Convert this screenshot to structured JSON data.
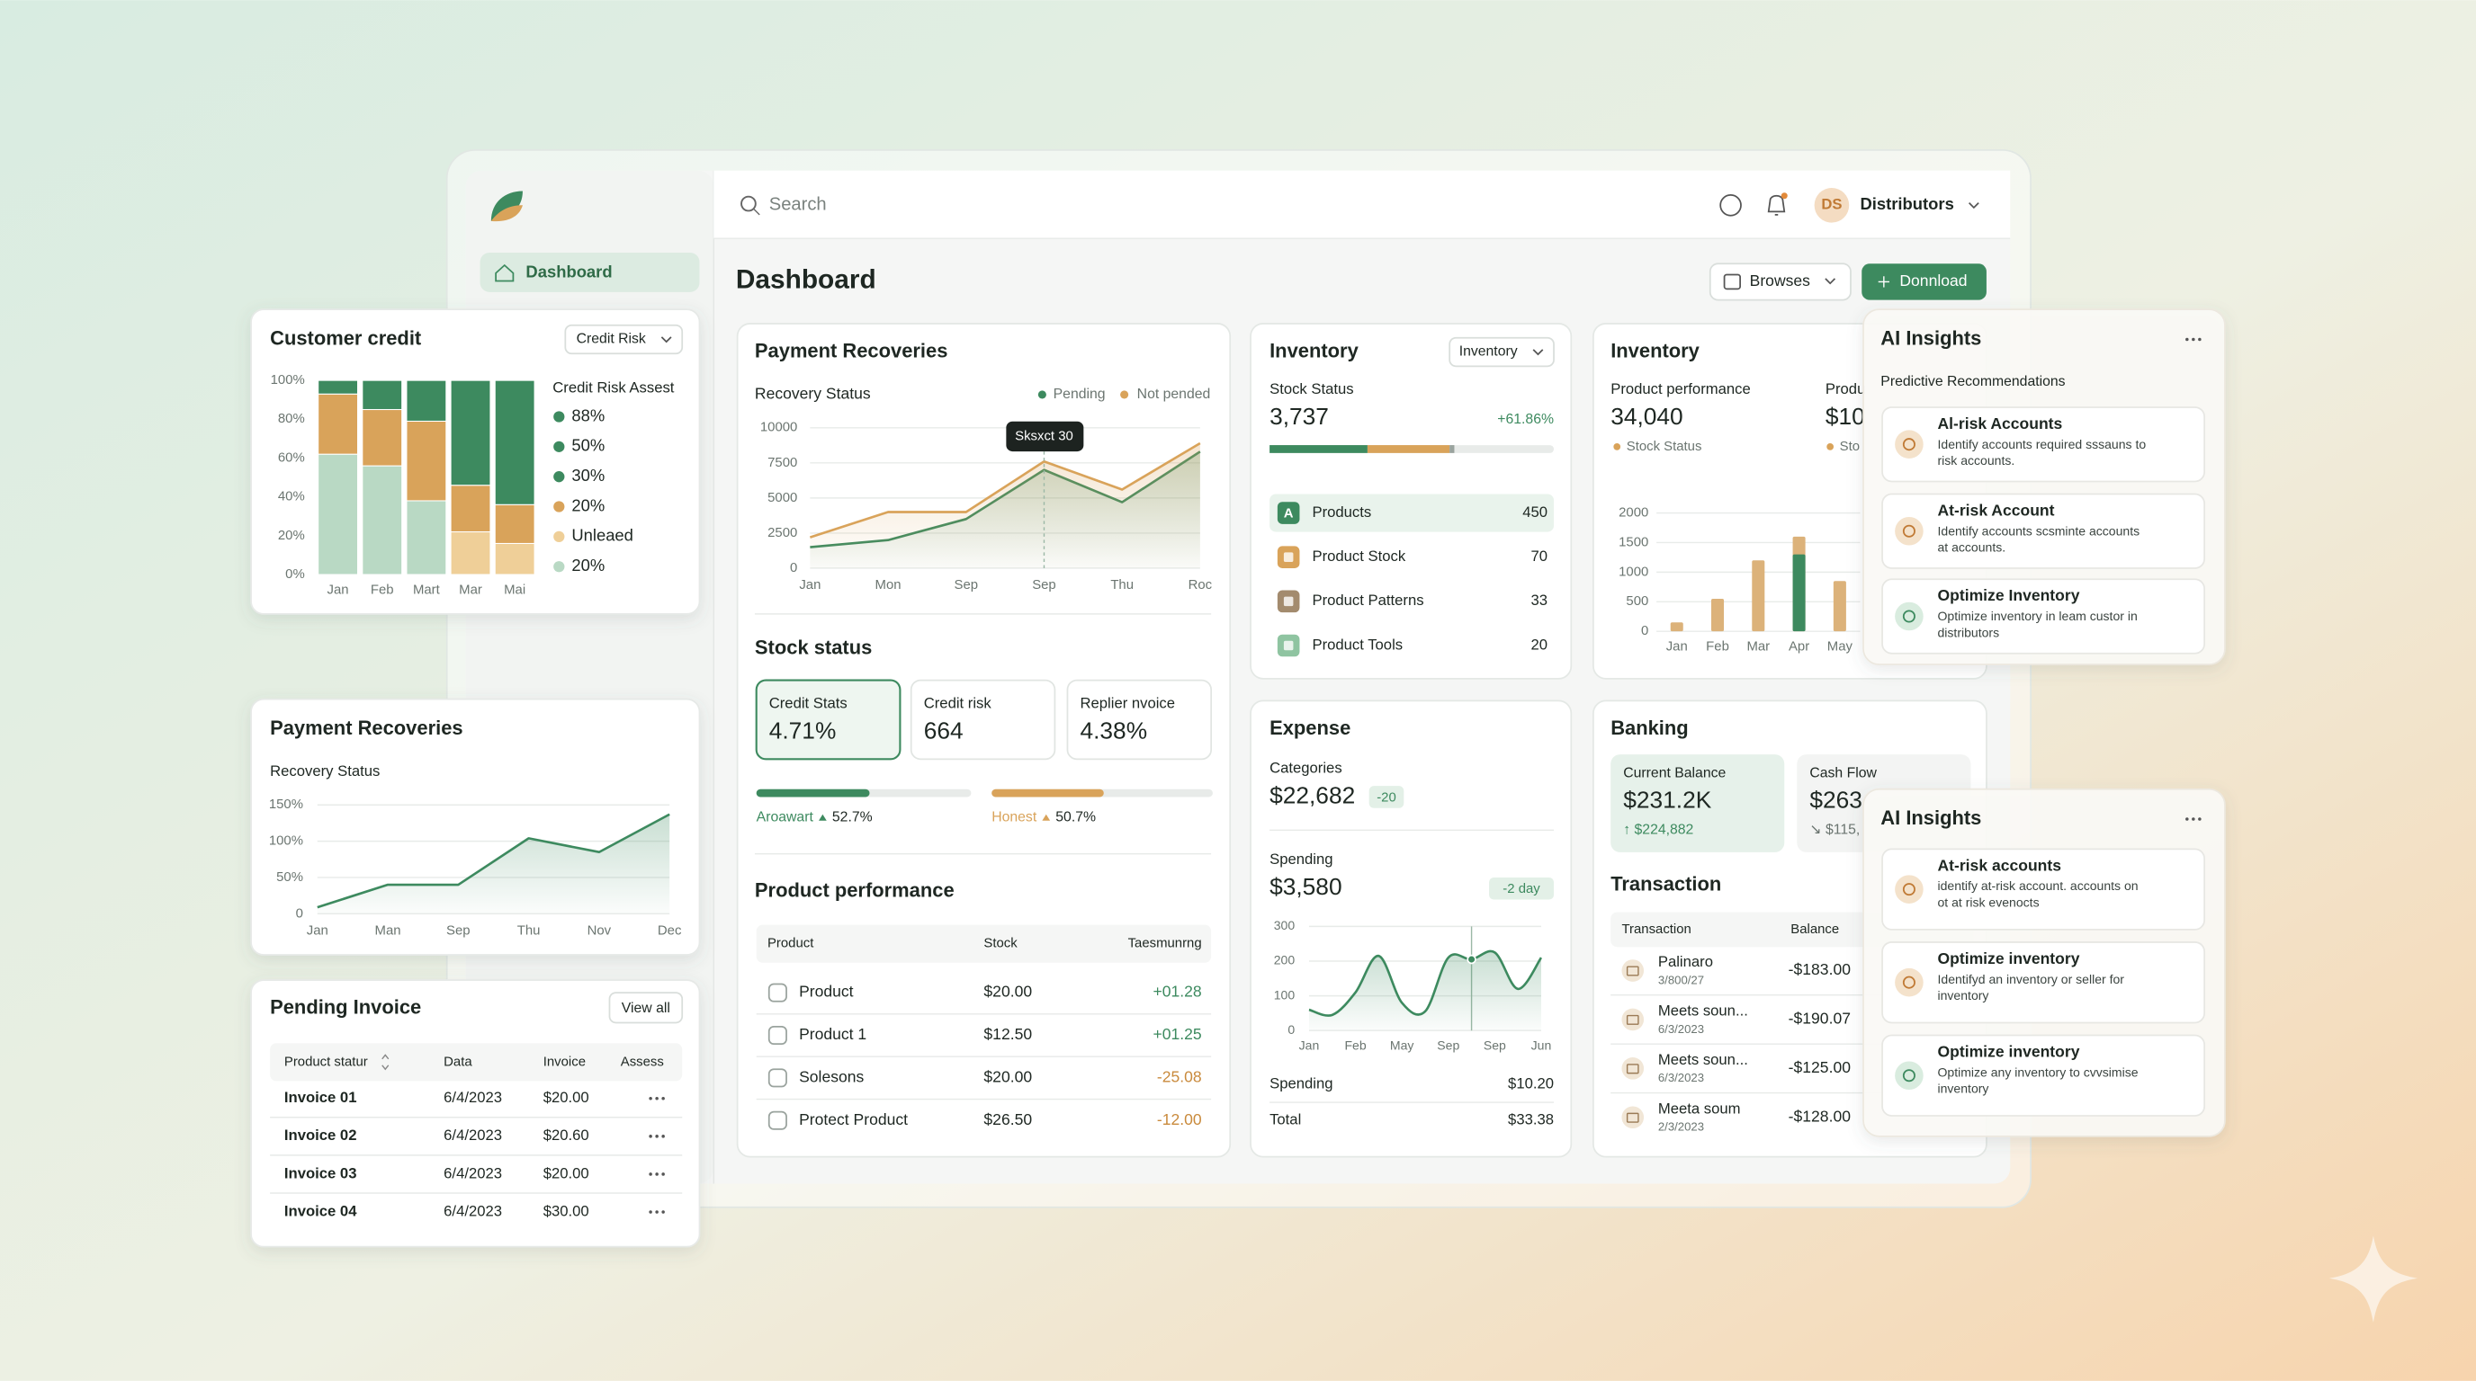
{
  "sidebar": {
    "nav": [
      "Dashboard"
    ]
  },
  "topbar": {
    "search": "Search",
    "user_initials": "DS",
    "user": "Distributors"
  },
  "header": {
    "title": "Dashboard",
    "buttons": [
      "Browses",
      "Donnload"
    ]
  },
  "payment_recoveries": {
    "title": "Payment Recoveries",
    "chart": {
      "type": "area",
      "title": "Recovery Status",
      "categories": [
        "Jan",
        "Mon",
        "Sep",
        "Sep",
        "Thu",
        "Roc"
      ],
      "series": [
        {
          "name": "Pending",
          "color": "#3d8a5f",
          "values": [
            1500,
            2000,
            3500,
            7000,
            4700,
            8300
          ]
        },
        {
          "name": "Not pended",
          "color": "#d9a35a",
          "values": [
            2200,
            4000,
            4000,
            7600,
            5600,
            8900
          ]
        }
      ],
      "ylim": [
        0,
        10000
      ],
      "yticks": [
        0,
        2500,
        5000,
        7500,
        10000
      ],
      "grid": true,
      "tooltip": "Sksxct 30"
    },
    "stock_title": "Stock status",
    "stats": [
      {
        "label": "Credit Stats",
        "value": "4.71%"
      },
      {
        "label": "Credit risk",
        "value": "664"
      },
      {
        "label": "Replier nvoice",
        "value": "4.38%"
      }
    ],
    "progress": {
      "xlim": [
        0,
        100
      ],
      "items": [
        {
          "label": "Aroawart",
          "value": 52.7,
          "value_label": "52.7%",
          "color": "#3d8a5f"
        },
        {
          "label": "Honest",
          "value": 50.7,
          "value_label": "50.7%",
          "color": "#d9a35a"
        }
      ]
    },
    "table": {
      "title": "Product performance",
      "columns": [
        "Product",
        "Stock",
        "Taesmunrng"
      ],
      "rows": [
        [
          "Product",
          "$20.00",
          "+01.28"
        ],
        [
          "Product 1",
          "$12.50",
          "+01.25"
        ],
        [
          "Solesons",
          "$20.00",
          "-25.08"
        ],
        [
          "Protect Product",
          "$26.50",
          "-12.00"
        ]
      ]
    }
  },
  "inventory_list": {
    "title": "Inventory",
    "dropdown": "Inventory",
    "label": "Stock Status",
    "value": "3,737",
    "change": "+61.86%",
    "items": [
      {
        "icon": "A",
        "name": "Products",
        "count": "450"
      },
      {
        "name": "Product Stock",
        "count": "70"
      },
      {
        "name": "Product Patterns",
        "count": "33"
      },
      {
        "name": "Product Tools",
        "count": "20"
      }
    ]
  },
  "inventory_chart": {
    "title": "Inventory",
    "subtitle": "Product performance",
    "value": "34,040",
    "legend": "Stock Status",
    "subtitle2": "Produ",
    "value2": "$10",
    "legend2": "Sto",
    "chart": {
      "type": "bar",
      "categories": [
        "Jan",
        "Feb",
        "Mar",
        "Apr",
        "May"
      ],
      "series": [
        {
          "color": "#dcb27a",
          "values": [
            150,
            550,
            1200,
            1600,
            850
          ]
        },
        {
          "color": "#3d8a5f",
          "values": [
            null,
            null,
            null,
            1300,
            null
          ]
        }
      ],
      "ylim": [
        0,
        2000
      ],
      "yticks": [
        0,
        500,
        1000,
        1500,
        2000
      ],
      "grid": true
    }
  },
  "expense": {
    "title": "Expense",
    "categories_label": "Categories",
    "amount": "$22,682",
    "badge": "-20",
    "spending_label": "Spending",
    "spending": "$3,580",
    "spending_badge": "-2 day",
    "chart": {
      "type": "area",
      "smooth": true,
      "categories": [
        "Jan",
        null,
        "Feb",
        null,
        "May",
        null,
        "Sep",
        null,
        "Sep",
        null,
        "Jun"
      ],
      "series": [
        {
          "color": "#3d8a5f",
          "values": [
            60,
            45,
            110,
            215,
            80,
            55,
            210,
            205,
            225,
            120,
            210
          ]
        }
      ],
      "ylim": [
        0,
        300
      ],
      "yticks": [
        0,
        100,
        200,
        300
      ],
      "grid": true,
      "highlight": 7
    },
    "summary": [
      [
        "Spending",
        "$10.20"
      ],
      [
        "Total",
        "$33.38"
      ]
    ]
  },
  "banking": {
    "title": "Banking",
    "cards": [
      {
        "label": "Current Balance",
        "value": "$231.2K",
        "change": "↑ $224,882"
      },
      {
        "label": "Cash Flow",
        "value": "$263",
        "change": "↘ $115,"
      }
    ],
    "transactions": {
      "title": "Transaction",
      "columns": [
        "Transaction",
        "Balance"
      ],
      "rows": [
        {
          "name": "Palinaro",
          "date": "3/800/27",
          "amount": "-$183.00"
        },
        {
          "name": "Meets soun...",
          "date": "6/3/2023",
          "amount": "-$190.07"
        },
        {
          "name": "Meets soun...",
          "date": "6/3/2023",
          "amount": "-$125.00"
        },
        {
          "name": "Meeta soum",
          "date": "2/3/2023",
          "amount": "-$128.00"
        }
      ]
    }
  },
  "customer_credit": {
    "title": "Customer credit",
    "dropdown": "Credit Risk",
    "chart": {
      "type": "bar",
      "stacked": true,
      "categories": [
        "Jan",
        "Feb",
        "Mart",
        "Mar",
        "Mai"
      ],
      "series": [
        {
          "color": "#b9d9c4",
          "values": [
            62,
            56,
            38,
            0,
            0
          ]
        },
        {
          "color": "#efcf98",
          "values": [
            0,
            0,
            0,
            22,
            16
          ]
        },
        {
          "color": "#d9a35a",
          "values": [
            31,
            29,
            41,
            24,
            20
          ]
        },
        {
          "color": "#3d8a5f",
          "values": [
            7,
            15,
            21,
            54,
            64
          ]
        }
      ],
      "ylim": [
        0,
        100
      ],
      "grid": false,
      "yticks": [
        {
          "value": 0,
          "label": "0%"
        },
        {
          "value": 20,
          "label": "20%"
        },
        {
          "value": 40,
          "label": "40%"
        },
        {
          "value": 60,
          "label": "60%"
        },
        {
          "value": 80,
          "label": "80%"
        },
        {
          "value": 100,
          "label": "100%"
        }
      ]
    },
    "legend": {
      "title": "Credit Risk Assest",
      "items": [
        {
          "label": "88%",
          "color": "#3d8a5f"
        },
        {
          "label": "50%",
          "color": "#3d8a5f"
        },
        {
          "label": "30%",
          "color": "#3d8a5f"
        },
        {
          "label": "20%",
          "color": "#d9a35a"
        },
        {
          "label": "Unleaed",
          "color": "#efcf98"
        },
        {
          "label": "20%",
          "color": "#b9d9c4"
        }
      ]
    }
  },
  "payment_small": {
    "title": "Payment Recoveries",
    "chart": {
      "type": "area",
      "title": "Recovery Status",
      "categories": [
        "Jan",
        "Man",
        "Sep",
        "Thu",
        "Nov",
        "Dec"
      ],
      "series": [
        {
          "color": "#3d8a5f",
          "values": [
            9,
            40,
            40,
            104,
            85,
            137
          ]
        }
      ],
      "ylim": [
        0,
        150
      ],
      "grid": true,
      "yticks": [
        0,
        {
          "value": 50,
          "label": "50%"
        },
        {
          "value": 100,
          "label": "100%"
        },
        {
          "value": 150,
          "label": "150%"
        }
      ]
    }
  },
  "pending_invoice": {
    "title": "Pending Invoice",
    "button": "View all",
    "columns": [
      "Product statur",
      "Data",
      "Invoice",
      "Assess"
    ],
    "rows": [
      [
        "Invoice 01",
        "6/4/2023",
        "$20.00"
      ],
      [
        "Invoice 02",
        "6/4/2023",
        "$20.60"
      ],
      [
        "Invoice 03",
        "6/4/2023",
        "$20.00"
      ],
      [
        "Invoice 04",
        "6/4/2023",
        "$30.00"
      ]
    ]
  },
  "ai_insights": [
    {
      "title": "AI Insights",
      "subtitle": "Predictive Recommendations",
      "items": [
        {
          "title": "Al-risk Accounts",
          "desc": [
            "Identify accounts required sssauns to",
            "risk accounts."
          ]
        },
        {
          "title": "At-risk Account",
          "desc": [
            "Identify accounts scsminte accounts",
            "at accounts."
          ]
        },
        {
          "title": "Optimize Inventory",
          "desc": [
            "Optimize inventory in leam custor in",
            "distributors"
          ]
        }
      ]
    },
    {
      "title": "AI Insights",
      "items": [
        {
          "title": "At-risk accounts",
          "desc": [
            "identify at-risk account. accounts on",
            "ot at risk evenocts"
          ]
        },
        {
          "title": "Optimize inventory",
          "desc": [
            "Identifyd an inventory or seller for",
            "inventory"
          ]
        },
        {
          "title": "Optimize inventory",
          "desc": [
            "Optimize any inventory to cvvsimise",
            "inventory"
          ]
        }
      ]
    }
  ]
}
